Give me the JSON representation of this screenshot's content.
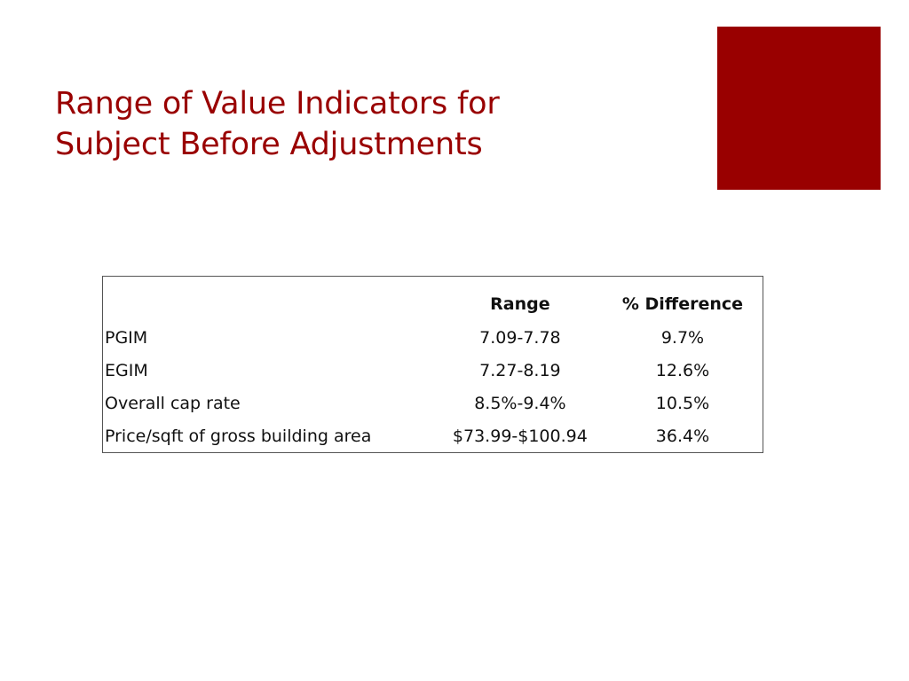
{
  "colors": {
    "accent": "#990000",
    "title": "#990000",
    "text": "#111111",
    "border": "#555555"
  },
  "slide": {
    "title_lines": [
      "Range of Value Indicators for",
      "Subject Before Adjustments"
    ]
  },
  "table": {
    "headers": [
      "",
      "Range",
      "% Difference"
    ],
    "rows": [
      {
        "label": "PGIM",
        "range": "7.09-7.78",
        "difference": "9.7%"
      },
      {
        "label": "EGIM",
        "range": "7.27-8.19",
        "difference": "12.6%"
      },
      {
        "label": "Overall cap rate",
        "range": "8.5%-9.4%",
        "difference": "10.5%"
      },
      {
        "label": "Price/sqft of gross building area",
        "range": "$73.99-$100.94",
        "difference": "36.4%"
      }
    ]
  }
}
